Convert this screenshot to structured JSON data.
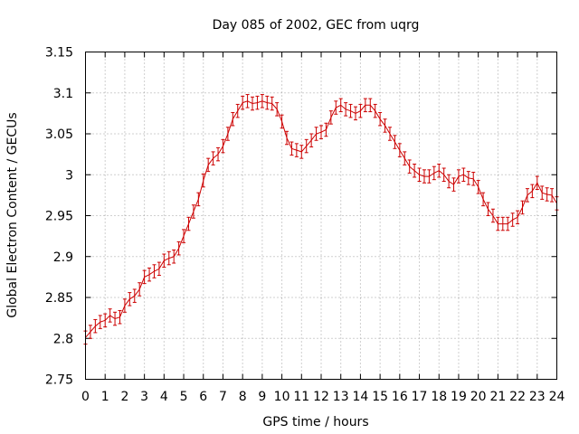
{
  "chart_data": {
    "type": "line",
    "title": "Day 085 of 2002, GEC from uqrg",
    "xlabel": "GPS time / hours",
    "ylabel": "Global Electron Content / GECUs",
    "xlim": [
      0,
      24
    ],
    "ylim": [
      2.75,
      3.15
    ],
    "grid": true,
    "series_color": "#cc0000",
    "xticks": [
      0,
      1,
      2,
      3,
      4,
      5,
      6,
      7,
      8,
      9,
      10,
      11,
      12,
      13,
      14,
      15,
      16,
      17,
      18,
      19,
      20,
      21,
      22,
      23,
      24
    ],
    "yticks": [
      2.75,
      2.8,
      2.85,
      2.9,
      2.95,
      3,
      3.05,
      3.1,
      3.15
    ],
    "ytick_labels": [
      "2.75",
      "2.8",
      "2.85",
      "2.9",
      "2.95",
      "3",
      "3.05",
      "3.1",
      "3.15"
    ],
    "error": 0.008,
    "x": [
      0.0,
      0.25,
      0.5,
      0.75,
      1.0,
      1.25,
      1.5,
      1.75,
      2.0,
      2.25,
      2.5,
      2.75,
      3.0,
      3.25,
      3.5,
      3.75,
      4.0,
      4.25,
      4.5,
      4.75,
      5.0,
      5.25,
      5.5,
      5.75,
      6.0,
      6.25,
      6.5,
      6.75,
      7.0,
      7.25,
      7.5,
      7.75,
      8.0,
      8.25,
      8.5,
      8.75,
      9.0,
      9.25,
      9.5,
      9.75,
      10.0,
      10.25,
      10.5,
      10.75,
      11.0,
      11.25,
      11.5,
      11.75,
      12.0,
      12.25,
      12.5,
      12.75,
      13.0,
      13.25,
      13.5,
      13.75,
      14.0,
      14.25,
      14.5,
      14.75,
      15.0,
      15.25,
      15.5,
      15.75,
      16.0,
      16.25,
      16.5,
      16.75,
      17.0,
      17.25,
      17.5,
      17.75,
      18.0,
      18.25,
      18.5,
      18.75,
      19.0,
      19.25,
      19.5,
      19.75,
      20.0,
      20.25,
      20.5,
      20.75,
      21.0,
      21.25,
      21.5,
      21.75,
      22.0,
      22.25,
      22.5,
      22.75,
      23.0,
      23.25,
      23.5,
      23.75,
      24.0
    ],
    "y": [
      2.801,
      2.808,
      2.815,
      2.82,
      2.822,
      2.828,
      2.824,
      2.826,
      2.84,
      2.848,
      2.852,
      2.86,
      2.875,
      2.878,
      2.882,
      2.885,
      2.895,
      2.898,
      2.9,
      2.91,
      2.925,
      2.94,
      2.955,
      2.97,
      2.993,
      3.012,
      3.02,
      3.025,
      3.035,
      3.05,
      3.068,
      3.078,
      3.088,
      3.09,
      3.087,
      3.088,
      3.09,
      3.088,
      3.087,
      3.08,
      3.065,
      3.045,
      3.032,
      3.03,
      3.028,
      3.035,
      3.042,
      3.05,
      3.052,
      3.055,
      3.07,
      3.082,
      3.085,
      3.08,
      3.078,
      3.075,
      3.078,
      3.085,
      3.085,
      3.078,
      3.068,
      3.06,
      3.05,
      3.04,
      3.03,
      3.02,
      3.01,
      3.005,
      3.0,
      2.998,
      2.998,
      3.002,
      3.005,
      3.0,
      2.992,
      2.988,
      2.998,
      3.0,
      2.996,
      2.995,
      2.985,
      2.97,
      2.958,
      2.95,
      2.94,
      2.94,
      2.94,
      2.945,
      2.948,
      2.96,
      2.975,
      2.98,
      2.99,
      2.978,
      2.976,
      2.975,
      2.965
    ]
  }
}
